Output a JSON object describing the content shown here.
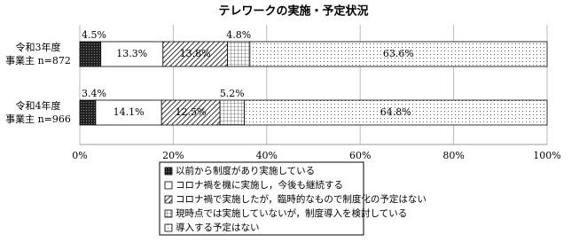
{
  "chart_data": {
    "type": "stacked-bar-horizontal",
    "title": "テレワークの実施・予定状況",
    "categories": [
      "令和3年度\n事業主 n=872",
      "令和4年度\n事業主 n=966"
    ],
    "series": [
      {
        "name": "以前から制度があり実施している",
        "color": "#333333",
        "pattern": "dense",
        "values": [
          4.5,
          3.4
        ],
        "value_labels": [
          "4.5%",
          "3.4%"
        ]
      },
      {
        "name": "コロナ禍を機に実施し，今後も継続する",
        "color": "#ffffff",
        "pattern": "none",
        "values": [
          13.3,
          14.1
        ],
        "value_labels": [
          "13.3%",
          "14.1%"
        ]
      },
      {
        "name": "コロナ禍で実施したが，臨時的なもので制度化の予定はない",
        "color": "#ffffff",
        "pattern": "hatch",
        "values": [
          13.8,
          12.5
        ],
        "value_labels": [
          "13.8%",
          "12.5%"
        ]
      },
      {
        "name": "現時点では実施していないが，制度導入を検討している",
        "color": "#ffffff",
        "pattern": "grid",
        "values": [
          4.8,
          5.2
        ],
        "value_labels": [
          "4.8%",
          "5.2%"
        ]
      },
      {
        "name": "導入する予定はない",
        "color": "#ffffff",
        "pattern": "dots",
        "values": [
          63.6,
          64.8
        ],
        "value_labels": [
          "63.6%",
          "64.8%"
        ]
      }
    ],
    "xlim": [
      0,
      100
    ],
    "xticks": [
      {
        "value": 0,
        "label": "0%"
      },
      {
        "value": 20,
        "label": "20%"
      },
      {
        "value": 40,
        "label": "40%"
      },
      {
        "value": 60,
        "label": "60%"
      },
      {
        "value": 80,
        "label": "80%"
      },
      {
        "value": 100,
        "label": "100%"
      }
    ],
    "grid": true
  }
}
